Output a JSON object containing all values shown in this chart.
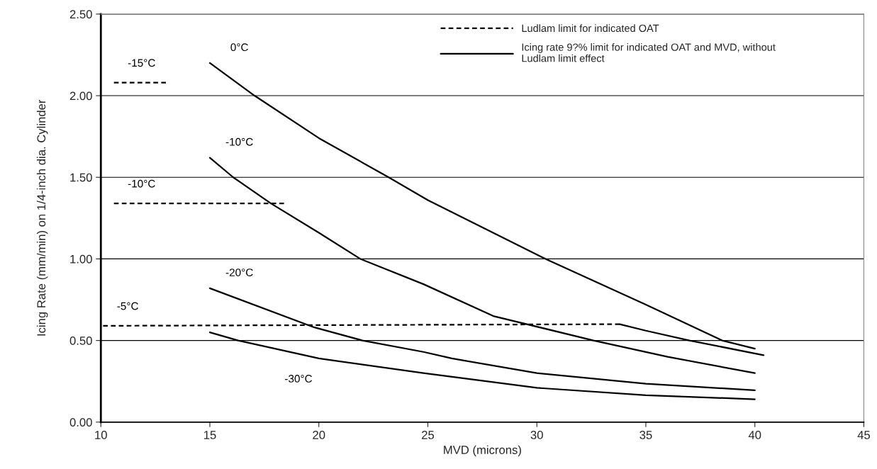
{
  "chart_data": {
    "type": "line",
    "xlabel": "MVD (microns)",
    "ylabel": "Icing Rate (mm/min) on 1/4-inch dia. Cylinder",
    "xlim": [
      10,
      45
    ],
    "xticks": [
      10,
      15,
      20,
      25,
      30,
      35,
      40,
      45
    ],
    "ylim": [
      0,
      2.5
    ],
    "yticks": [
      {
        "value": 0,
        "label": "0.00"
      },
      {
        "value": 0.5,
        "label": "0.50"
      },
      {
        "value": 1,
        "label": "1.00"
      },
      {
        "value": 1.5,
        "label": "1.50"
      },
      {
        "value": 2,
        "label": "2.00"
      },
      {
        "value": 2.5,
        "label": "2.50"
      }
    ],
    "grid": "y",
    "marker": "none",
    "series": [
      {
        "name": "-15°C",
        "color": "#000000",
        "line_style": "dashed",
        "x": [
          10.6,
          13.1
        ],
        "values": [
          2.08,
          2.08
        ]
      },
      {
        "name": "-10°C",
        "color": "#000000",
        "line_style": "dashed",
        "x": [
          10.6,
          18.4
        ],
        "values": [
          1.34,
          1.34
        ]
      },
      {
        "name": "-5°C",
        "color": "#000000",
        "line_style": "dashed",
        "x": [
          10.1,
          33.8
        ],
        "values": [
          0.59,
          0.6
        ]
      },
      {
        "name": "0°C",
        "color": "#000000",
        "line_style": "solid",
        "x": [
          15,
          17.05,
          20,
          23.2,
          25,
          30.4,
          35,
          38.5,
          40
        ],
        "values": [
          2.2,
          2.0,
          1.74,
          1.5,
          1.36,
          1.0,
          0.72,
          0.5,
          0.45
        ]
      },
      {
        "name": "-10°C",
        "color": "#000000",
        "line_style": "solid",
        "x": [
          15,
          16.07,
          17.8,
          20,
          21.9,
          24.8,
          28,
          32.6,
          36,
          40
        ],
        "values": [
          1.62,
          1.5,
          1.34,
          1.16,
          1.0,
          0.845,
          0.65,
          0.5,
          0.4,
          0.3
        ]
      },
      {
        "name": "-20°C",
        "color": "#000000",
        "line_style": "solid",
        "x": [
          15,
          19.8,
          22.0,
          24.8,
          26.1,
          30,
          35,
          40
        ],
        "values": [
          0.82,
          0.58,
          0.5,
          0.43,
          0.39,
          0.3,
          0.235,
          0.195
        ]
      },
      {
        "name": "-30°C",
        "color": "#000000",
        "line_style": "solid",
        "x": [
          15,
          16.3,
          20,
          24.8,
          30,
          35,
          40
        ],
        "values": [
          0.55,
          0.5,
          0.39,
          0.3,
          0.21,
          0.165,
          0.14
        ]
      },
      {
        "color": "#000000",
        "line_style": "solid",
        "x": [
          33.8,
          35,
          37,
          40.4
        ],
        "values": [
          0.6,
          0.56,
          0.5,
          0.41
        ]
      }
    ],
    "annotations": [
      "Ludlam limit for indicated OAT",
      "Icing rate 9?% limit for indicated OAT and MVD, without Ludlam limit effect"
    ]
  }
}
